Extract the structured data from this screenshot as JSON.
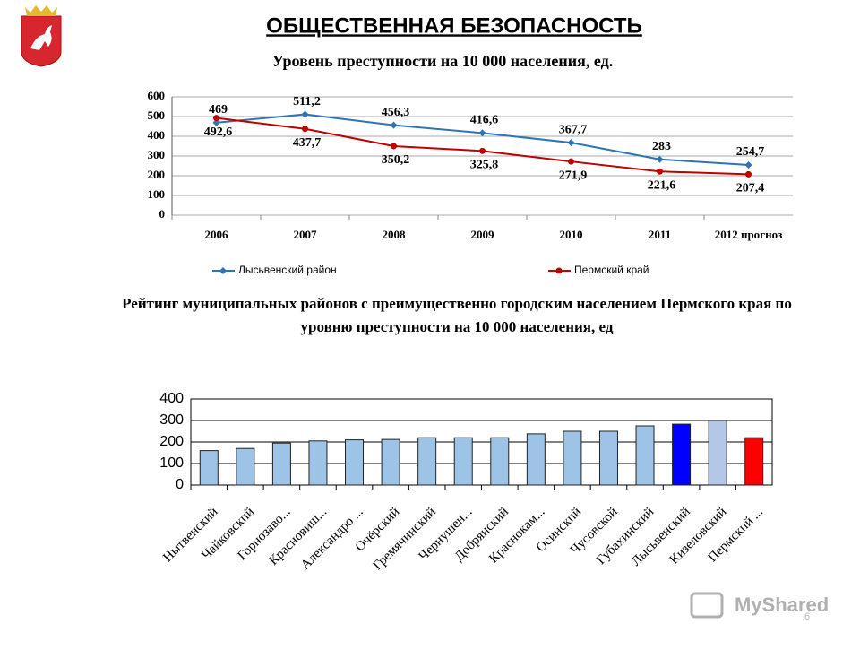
{
  "title": "ОБЩЕСТВЕННАЯ БЕЗОПАСНОСТЬ",
  "watermark": "MyShared",
  "page_number": "6",
  "chart_data": [
    {
      "type": "line",
      "title": "Уровень преступности на 10 000 населения, ед.",
      "categories": [
        "2006",
        "2007",
        "2008",
        "2009",
        "2010",
        "2011",
        "2012 прогноз"
      ],
      "series": [
        {
          "name": "Лысьвенский район",
          "color": "#2e74b5",
          "values": [
            469,
            511.2,
            456.3,
            416.6,
            367.7,
            283,
            254.7
          ],
          "value_labels": [
            "469",
            "511,2",
            "456,3",
            "416,6",
            "367,7",
            "283",
            "254,7"
          ]
        },
        {
          "name": "Пермский край",
          "color": "#c00000",
          "values": [
            492.6,
            437.7,
            350.2,
            325.8,
            271.9,
            221.6,
            207.4
          ],
          "value_labels": [
            "492,6",
            "437,7",
            "350,2",
            "325,8",
            "271,9",
            "221,6",
            "207,4"
          ]
        }
      ],
      "ylim": [
        0,
        600
      ],
      "yticks": [
        0,
        100,
        200,
        300,
        400,
        500,
        600
      ],
      "grid": true,
      "legend": "bottom"
    },
    {
      "type": "bar",
      "title": "Рейтинг муниципальных районов с преимущественно городским населением Пермского края по уровню преступности на 10 000 населения, ед",
      "categories": [
        "Нытвенский",
        "Чайковский",
        "Горнозаво...",
        "Красновиш...",
        "Александро ...",
        "Очёрский",
        "Гремячинский",
        "Чернушен...",
        "Добрянский",
        "Краснокам...",
        "Осинский",
        "Чусовской",
        "Губахинский",
        "Лысьвенский",
        "Кизеловский",
        "Пермский ..."
      ],
      "values": [
        160,
        170,
        195,
        205,
        210,
        212,
        220,
        220,
        220,
        238,
        250,
        250,
        275,
        283,
        300,
        220
      ],
      "colors": [
        "#9dc3e6",
        "#9dc3e6",
        "#9dc3e6",
        "#9dc3e6",
        "#9dc3e6",
        "#9dc3e6",
        "#9dc3e6",
        "#9dc3e6",
        "#9dc3e6",
        "#9dc3e6",
        "#9dc3e6",
        "#9dc3e6",
        "#9dc3e6",
        "#0000ff",
        "#b4c7e7",
        "#ff0000"
      ],
      "ylim": [
        0,
        400
      ],
      "yticks": [
        0,
        100,
        200,
        300,
        400
      ],
      "grid": true
    }
  ]
}
